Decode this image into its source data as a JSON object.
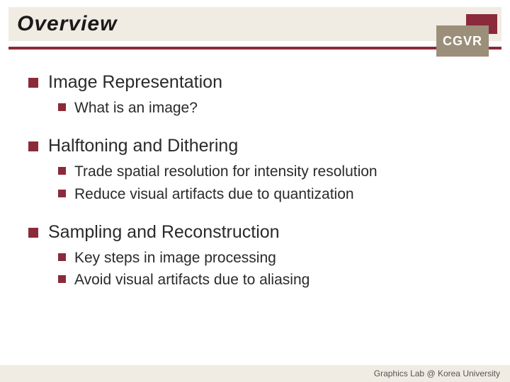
{
  "slide": {
    "title": "Overview",
    "badge_text": "CGVR",
    "footer": "Graphics Lab @ Korea University",
    "colors": {
      "accent": "#8b2a3a",
      "band_bg": "#f1ece3",
      "badge_front": "#9b8f7a",
      "badge_back": "#8b2a3a",
      "text": "#2a2a2a",
      "footer_text": "#555555",
      "background": "#ffffff"
    },
    "typography": {
      "title_fontsize": 30,
      "title_style": "italic bold",
      "top_fontsize": 25,
      "sub_fontsize": 21,
      "footer_fontsize": 12,
      "font_family": "Arial"
    },
    "bullet_style": {
      "top_size": 14,
      "sub_size": 11,
      "color": "#8b2a3a",
      "shape": "square"
    },
    "sections": [
      {
        "heading": "Image Representation",
        "items": [
          "What is an image?"
        ]
      },
      {
        "heading": "Halftoning and Dithering",
        "items": [
          "Trade spatial resolution for intensity resolution",
          "Reduce visual artifacts due to quantization"
        ]
      },
      {
        "heading": "Sampling and Reconstruction",
        "items": [
          "Key steps in image processing",
          "Avoid visual artifacts due to aliasing"
        ]
      }
    ]
  }
}
